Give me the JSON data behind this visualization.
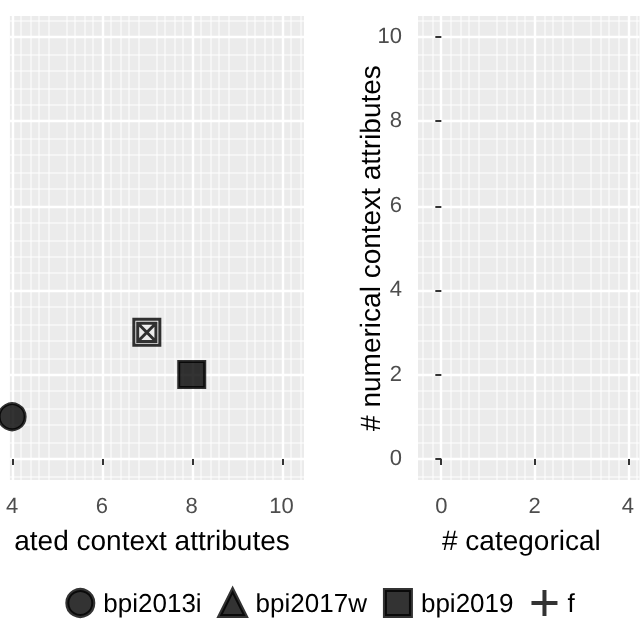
{
  "chart_data": [
    {
      "type": "scatter",
      "xlabel": "ated context attributes",
      "xlim": [
        3.95,
        10.5
      ],
      "xticks": [
        4,
        6,
        8,
        10
      ],
      "ylim": [
        -0.5,
        10.5
      ],
      "yticks": [
        0,
        2,
        4,
        6,
        8,
        10
      ],
      "tick_labels": "x",
      "grid": true,
      "legend": "bottom",
      "series": [
        {
          "name": "bpi2013i",
          "color": "#000000",
          "marker": "circle",
          "x": [
            4
          ],
          "values": [
            1
          ]
        },
        {
          "name": "bpi2017w",
          "color": "#000000",
          "marker": "triangle"
        },
        {
          "name": "bpi2019",
          "color": "#000000",
          "marker": "square",
          "x": [
            8
          ],
          "values": [
            2
          ]
        },
        {
          "name": "f",
          "color": "#000000",
          "marker": "cross"
        },
        {
          "color": "#000000",
          "x": [
            7
          ],
          "values": [
            3
          ]
        }
      ]
    },
    {
      "type": "scatter",
      "xlabel": "# categorical",
      "ylabel": "# numerical context attributes",
      "xlim": [
        -0.5,
        4.25
      ],
      "xticks": [
        0,
        2,
        4
      ],
      "ylim": [
        -0.5,
        10.5
      ],
      "yticks": [
        0,
        2,
        4,
        6,
        8,
        10
      ],
      "grid": true
    }
  ]
}
